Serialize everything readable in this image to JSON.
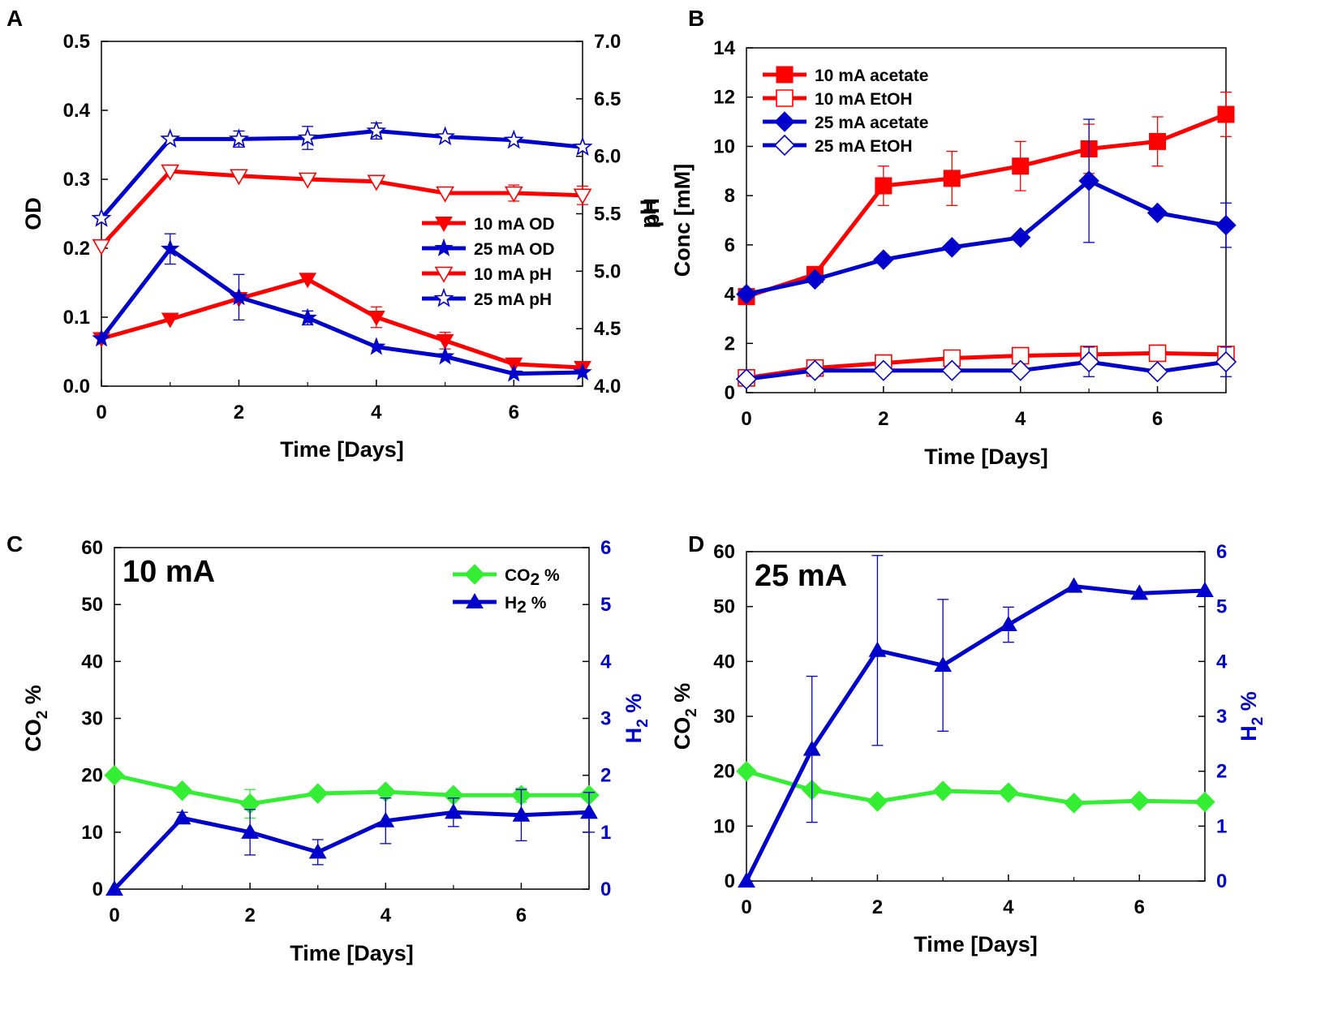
{
  "colors": {
    "red": "#ff0000",
    "blue": "#0000cc",
    "green": "#33ee33",
    "axis": "#000000"
  },
  "chart_data": [
    {
      "panel": "A",
      "type": "line",
      "xlabel": "Time [Days]",
      "ylabel": "OD",
      "y2label": "pH",
      "xlim": [
        0,
        7
      ],
      "ylim": [
        0.0,
        0.5
      ],
      "y2lim": [
        4.0,
        7.0
      ],
      "xticks": [
        0,
        2,
        4,
        6
      ],
      "xtick_labels": [
        "0",
        "2",
        "4",
        "6"
      ],
      "yticks": [
        0.0,
        0.1,
        0.2,
        0.3,
        0.4,
        0.5
      ],
      "ytick_labels": [
        "0.0",
        "0.1",
        "0.2",
        "0.3",
        "0.4",
        "0.5"
      ],
      "y2ticks": [
        4.0,
        4.5,
        5.0,
        5.5,
        6.0,
        6.5,
        7.0
      ],
      "y2tick_labels": [
        "4.0",
        "4.5",
        "5.0",
        "5.5",
        "6.0",
        "6.5",
        "7.0"
      ],
      "legend_position": "center-right",
      "series": [
        {
          "name": "10 mA OD",
          "axis": "left",
          "color": "red",
          "marker": "triangle-down",
          "filled": true,
          "x": [
            0,
            1,
            2,
            3,
            4,
            5,
            6,
            7
          ],
          "values": [
            0.069,
            0.097,
            0.127,
            0.155,
            0.1,
            0.066,
            0.032,
            0.027
          ],
          "errors": [
            0,
            0,
            0,
            0,
            0.015,
            0.012,
            0,
            0
          ]
        },
        {
          "name": "25 mA OD",
          "axis": "left",
          "color": "blue",
          "marker": "star",
          "filled": true,
          "x": [
            0,
            1,
            2,
            3,
            4,
            5,
            6,
            7
          ],
          "values": [
            0.069,
            0.199,
            0.129,
            0.099,
            0.057,
            0.043,
            0.018,
            0.02
          ],
          "errors": [
            0,
            0.022,
            0.033,
            0.01,
            0,
            0,
            0,
            0
          ]
        },
        {
          "name": "10 mA pH",
          "axis": "right",
          "color": "red",
          "marker": "triangle-down",
          "filled": false,
          "x": [
            0,
            1,
            2,
            3,
            4,
            5,
            6,
            7
          ],
          "values": [
            5.22,
            5.87,
            5.83,
            5.8,
            5.78,
            5.68,
            5.68,
            5.66
          ],
          "errors": [
            0,
            0,
            0,
            0,
            0,
            0,
            0.07,
            0.08
          ]
        },
        {
          "name": "25 mA pH",
          "axis": "right",
          "color": "blue",
          "marker": "star",
          "filled": false,
          "x": [
            0,
            1,
            2,
            3,
            4,
            5,
            6,
            7
          ],
          "values": [
            5.46,
            6.15,
            6.15,
            6.16,
            6.22,
            6.17,
            6.14,
            6.08
          ],
          "errors": [
            0,
            0,
            0.07,
            0.1,
            0.07,
            0,
            0,
            0
          ]
        }
      ]
    },
    {
      "panel": "B",
      "type": "line",
      "xlabel": "Time [Days]",
      "ylabel": "Conc [mM]",
      "y2label": "pH",
      "xlim": [
        0,
        7
      ],
      "ylim": [
        0,
        14
      ],
      "xticks": [
        0,
        2,
        4,
        6
      ],
      "xtick_labels": [
        "0",
        "2",
        "4",
        "6"
      ],
      "yticks": [
        0,
        2,
        4,
        6,
        8,
        10,
        12,
        14
      ],
      "ytick_labels": [
        "0",
        "2",
        "4",
        "6",
        "8",
        "10",
        "12",
        "14"
      ],
      "legend_position": "top-left",
      "series": [
        {
          "name": "10 mA acetate",
          "color": "red",
          "marker": "square",
          "filled": true,
          "x": [
            0,
            1,
            2,
            3,
            4,
            5,
            6,
            7
          ],
          "values": [
            3.9,
            4.8,
            8.4,
            8.7,
            9.2,
            9.9,
            10.2,
            11.3
          ],
          "errors": [
            0,
            0,
            0.8,
            1.1,
            1.0,
            1.0,
            1.0,
            0.9
          ]
        },
        {
          "name": "10 mA EtOH",
          "color": "red",
          "marker": "square",
          "filled": false,
          "x": [
            0,
            1,
            2,
            3,
            4,
            5,
            6,
            7
          ],
          "values": [
            0.6,
            1.0,
            1.2,
            1.4,
            1.5,
            1.55,
            1.6,
            1.55
          ],
          "errors": [
            0,
            0,
            0,
            0,
            0,
            0,
            0,
            0
          ]
        },
        {
          "name": "25 mA acetate",
          "color": "blue",
          "marker": "diamond",
          "filled": true,
          "x": [
            0,
            1,
            2,
            3,
            4,
            5,
            6,
            7
          ],
          "values": [
            4.0,
            4.6,
            5.4,
            5.9,
            6.3,
            8.6,
            7.3,
            6.8
          ],
          "errors": [
            0,
            0,
            0,
            0,
            0,
            2.5,
            0,
            0.9
          ]
        },
        {
          "name": "25 mA EtOH",
          "color": "blue",
          "marker": "diamond",
          "filled": false,
          "x": [
            0,
            1,
            2,
            3,
            4,
            5,
            6,
            7
          ],
          "values": [
            0.55,
            0.9,
            0.9,
            0.9,
            0.9,
            1.25,
            0.85,
            1.25
          ],
          "errors": [
            0,
            0,
            0,
            0,
            0,
            0.6,
            0,
            0.6
          ]
        }
      ]
    },
    {
      "panel": "C",
      "type": "line",
      "annotation": "10 mA",
      "xlabel": "Time [Days]",
      "ylabel_main": "CO",
      "ylabel_sub": "2",
      "ylabel_suffix": " %",
      "y2label_main": "H",
      "y2label_sub": "2",
      "y2label_suffix": " %",
      "xlim": [
        0,
        7
      ],
      "ylim": [
        0,
        60
      ],
      "y2lim": [
        0,
        6
      ],
      "xticks": [
        0,
        2,
        4,
        6
      ],
      "xtick_labels": [
        "0",
        "2",
        "4",
        "6"
      ],
      "yticks": [
        0,
        10,
        20,
        30,
        40,
        50,
        60
      ],
      "ytick_labels": [
        "0",
        "10",
        "20",
        "30",
        "40",
        "50",
        "60"
      ],
      "y2ticks": [
        0,
        1,
        2,
        3,
        4,
        5,
        6
      ],
      "y2tick_labels": [
        "0",
        "1",
        "2",
        "3",
        "4",
        "5",
        "6"
      ],
      "legend_position": "top-right",
      "series": [
        {
          "name": "CO2 %",
          "legend_main": "CO",
          "legend_sub": "2",
          "legend_suffix": " %",
          "axis": "left",
          "color": "green",
          "marker": "diamond",
          "filled": true,
          "x": [
            0,
            1,
            2,
            3,
            4,
            5,
            6,
            7
          ],
          "values": [
            20.0,
            17.3,
            15.0,
            16.8,
            17.1,
            16.5,
            16.5,
            16.5
          ],
          "errors": [
            0,
            0,
            2.5,
            0,
            0,
            0,
            1.2,
            0
          ]
        },
        {
          "name": "H2 %",
          "legend_main": "H",
          "legend_sub": "2",
          "legend_suffix": " %",
          "axis": "right",
          "color": "blue",
          "marker": "triangle-up",
          "filled": true,
          "x": [
            0,
            1,
            2,
            3,
            4,
            5,
            6,
            7
          ],
          "values": [
            0.0,
            1.25,
            1.0,
            0.65,
            1.2,
            1.35,
            1.3,
            1.35
          ],
          "errors": [
            0,
            0.1,
            0.4,
            0.22,
            0.4,
            0.25,
            0.45,
            0.35
          ]
        }
      ]
    },
    {
      "panel": "D",
      "type": "line",
      "annotation": "25 mA",
      "xlabel": "Time [Days]",
      "ylabel_main": "CO",
      "ylabel_sub": "2",
      "ylabel_suffix": " %",
      "y2label_main": "H",
      "y2label_sub": "2",
      "y2label_suffix": " %",
      "xlim": [
        0,
        7
      ],
      "ylim": [
        0,
        60
      ],
      "y2lim": [
        0,
        6
      ],
      "xticks": [
        0,
        2,
        4,
        6
      ],
      "xtick_labels": [
        "0",
        "2",
        "4",
        "6"
      ],
      "yticks": [
        0,
        10,
        20,
        30,
        40,
        50,
        60
      ],
      "ytick_labels": [
        "0",
        "10",
        "20",
        "30",
        "40",
        "50",
        "60"
      ],
      "y2ticks": [
        0,
        1,
        2,
        3,
        4,
        5,
        6
      ],
      "y2tick_labels": [
        "0",
        "1",
        "2",
        "3",
        "4",
        "5",
        "6"
      ],
      "series": [
        {
          "name": "CO2 %",
          "axis": "left",
          "color": "green",
          "marker": "diamond",
          "filled": true,
          "x": [
            0,
            1,
            2,
            3,
            4,
            5,
            6,
            7
          ],
          "values": [
            20.0,
            16.6,
            14.5,
            16.4,
            16.1,
            14.2,
            14.6,
            14.4
          ],
          "errors": [
            0,
            0,
            0,
            0,
            0,
            0,
            0,
            0
          ]
        },
        {
          "name": "H2 %",
          "axis": "right",
          "color": "blue",
          "marker": "triangle-up",
          "filled": true,
          "x": [
            0,
            1,
            2,
            3,
            4,
            5,
            6,
            7
          ],
          "values": [
            0.0,
            2.4,
            4.2,
            3.93,
            4.67,
            5.37,
            5.24,
            5.29
          ],
          "errors": [
            0,
            1.33,
            1.73,
            1.2,
            0.32,
            0,
            0,
            0
          ]
        }
      ]
    }
  ]
}
